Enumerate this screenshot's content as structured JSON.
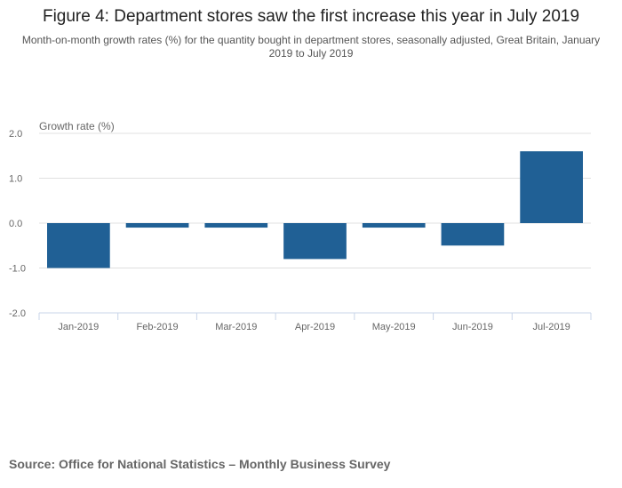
{
  "title": "Figure 4: Department stores saw the first increase this year in July 2019",
  "subtitle": "Month-on-month growth rates (%) for the quantity bought in department stores, seasonally adjusted, Great Britain, January 2019 to July 2019",
  "source": "Source: Office for National Statistics – Monthly Business Survey",
  "chart_data": {
    "type": "bar",
    "title": "Figure 4: Department stores saw the first increase this year in July 2019",
    "ylabel": "Growth rate (%)",
    "xlabel": "",
    "categories": [
      "Jan-2019",
      "Feb-2019",
      "Mar-2019",
      "Apr-2019",
      "May-2019",
      "Jun-2019",
      "Jul-2019"
    ],
    "values": [
      -1.0,
      -0.1,
      -0.1,
      -0.8,
      -0.1,
      -0.5,
      1.6
    ],
    "ylim": [
      -2.0,
      2.0
    ],
    "yticks": [
      "2.0",
      "1.0",
      "0.0",
      "-1.0",
      "-2.0"
    ],
    "grid": true,
    "bar_color": "#206095"
  }
}
